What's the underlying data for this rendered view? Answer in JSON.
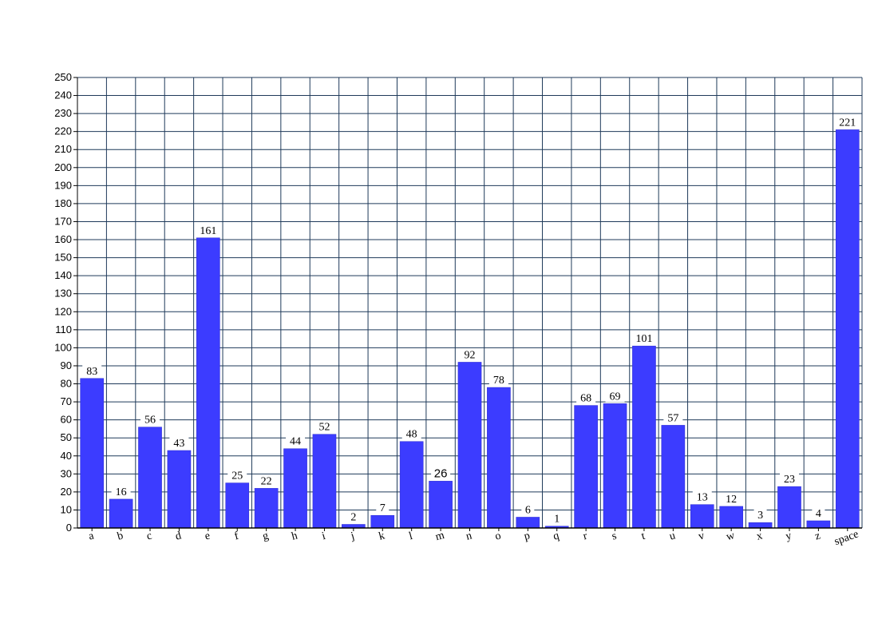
{
  "chart_data": {
    "type": "bar",
    "title": "",
    "xlabel": "",
    "ylabel": "",
    "ylim": [
      0,
      250
    ],
    "ytick_step": 10,
    "grid": true,
    "legend": "none",
    "colors": {
      "bar": "#3c3cff",
      "grid": "#1f3a5a",
      "label_bg": "#ffffff",
      "background": "#ffffff"
    },
    "categories": [
      "a",
      "b",
      "c",
      "d",
      "e",
      "f",
      "g",
      "h",
      "i",
      "j",
      "k",
      "l",
      "m",
      "n",
      "o",
      "p",
      "q",
      "r",
      "s",
      "t",
      "u",
      "v",
      "w",
      "x",
      "y",
      "z",
      "space"
    ],
    "values": [
      83,
      16,
      56,
      43,
      161,
      25,
      22,
      44,
      52,
      2,
      7,
      48,
      26,
      92,
      78,
      6,
      1,
      68,
      69,
      101,
      57,
      13,
      12,
      3,
      23,
      4,
      221
    ],
    "data_labels": [
      "83",
      "16",
      "56",
      "43",
      "161",
      "25",
      "22",
      "44",
      "52",
      "2",
      "7",
      "48",
      "26",
      "92",
      "78",
      "6",
      "1",
      "68",
      "69",
      "101",
      "57",
      "13",
      "12",
      "3",
      "23",
      "4",
      "221"
    ],
    "yticks": [
      "0",
      "10",
      "20",
      "30",
      "40",
      "50",
      "60",
      "70",
      "80",
      "90",
      "100",
      "110",
      "120",
      "130",
      "140",
      "150",
      "160",
      "170",
      "180",
      "190",
      "200",
      "210",
      "220",
      "230",
      "240",
      "250"
    ]
  }
}
